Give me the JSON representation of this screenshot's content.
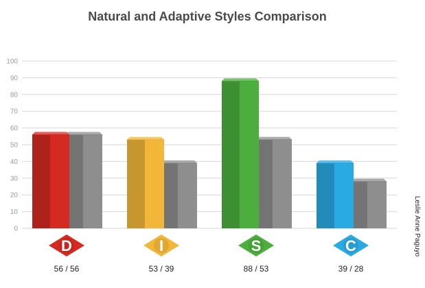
{
  "chart_data": {
    "type": "bar",
    "title": "Natural and Adaptive Styles Comparison",
    "xlabel": "",
    "ylabel": "",
    "ylim": [
      0,
      100
    ],
    "yticks": [
      0,
      10,
      20,
      30,
      40,
      50,
      60,
      70,
      80,
      90,
      100
    ],
    "grid": true,
    "categories": [
      "D",
      "I",
      "S",
      "C"
    ],
    "series": [
      {
        "values": [
          56,
          53,
          88,
          39
        ],
        "colors": [
          "#d42a22",
          "#f2b739",
          "#4cae3d",
          "#2aaae2"
        ]
      },
      {
        "values": [
          56,
          39,
          53,
          28
        ],
        "colors": [
          "#8e8e8e",
          "#8e8e8e",
          "#8e8e8e",
          "#8e8e8e"
        ]
      }
    ],
    "value_labels": [
      "56 / 56",
      "53 / 39",
      "88 / 53",
      "39 / 28"
    ],
    "side_text": "Leslie Anne Paguyo"
  }
}
